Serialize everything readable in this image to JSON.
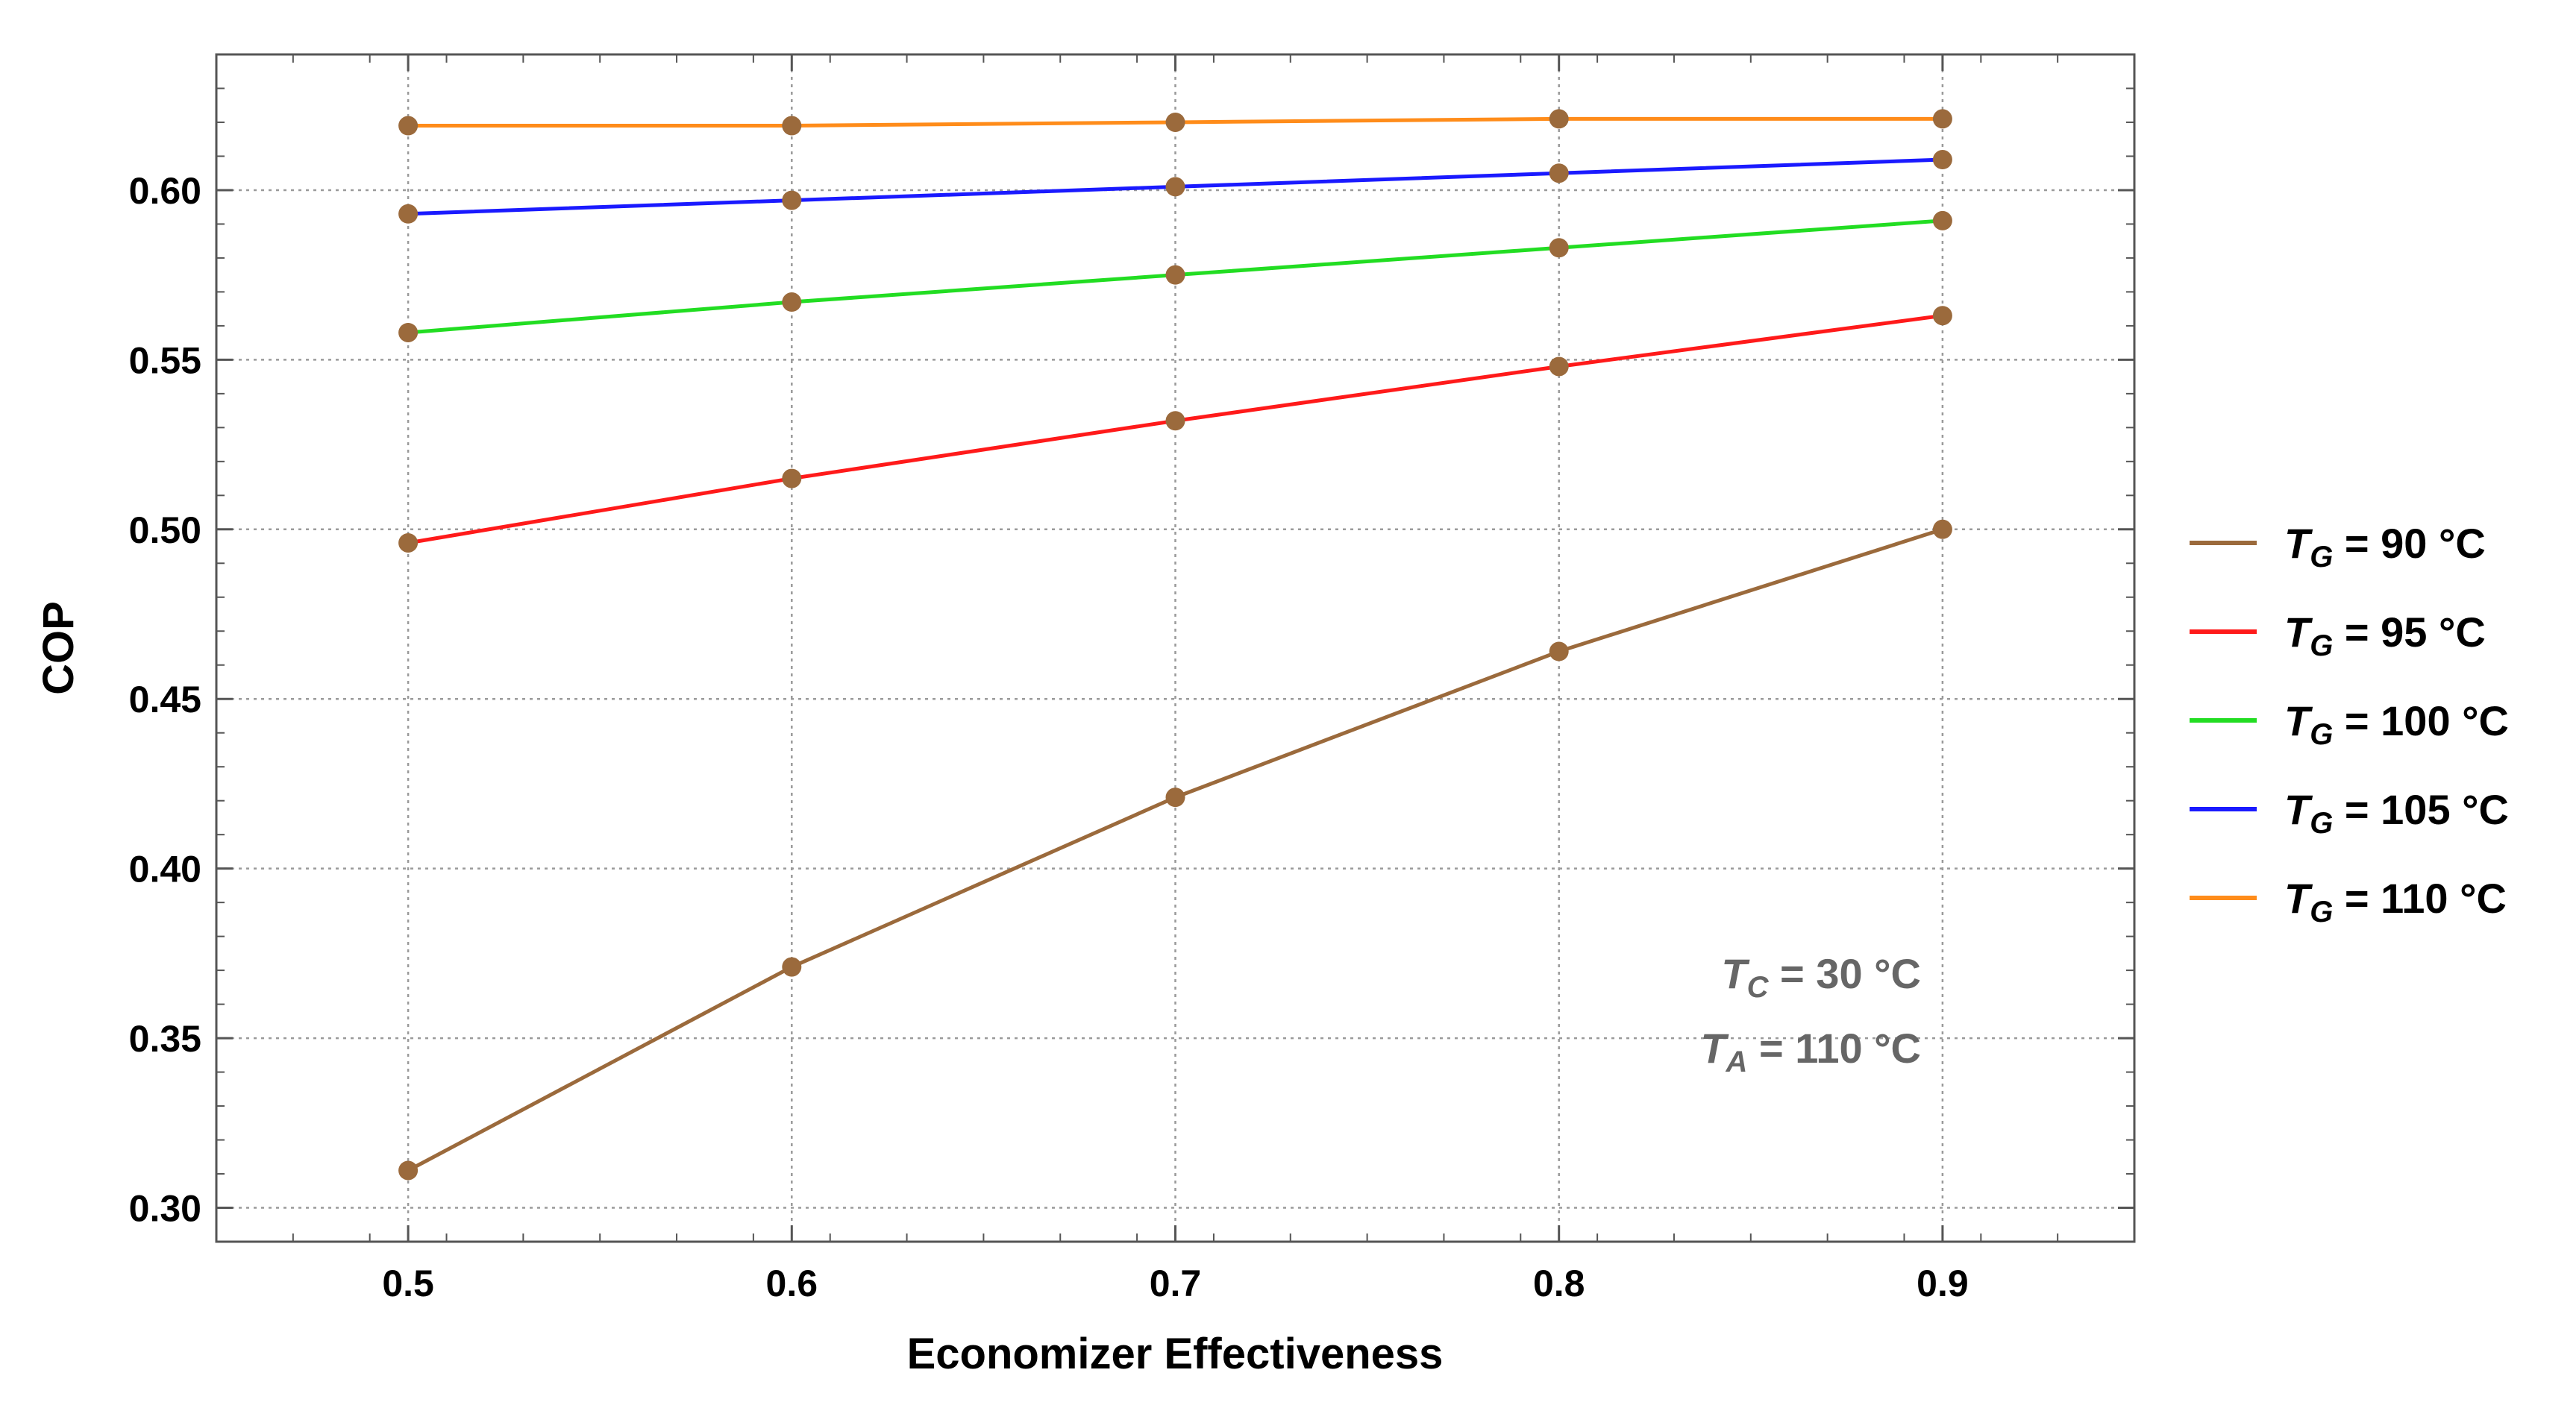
{
  "chart_data": {
    "type": "line",
    "title": "",
    "xlabel": "Economizer Effectiveness",
    "ylabel": "COP",
    "xlim": [
      0.45,
      0.95
    ],
    "ylim": [
      0.29,
      0.64
    ],
    "x": [
      0.5,
      0.6,
      0.7,
      0.8,
      0.9
    ],
    "xticks": [
      "0.5",
      "0.6",
      "0.7",
      "0.8",
      "0.9"
    ],
    "yticks": [
      "0.30",
      "0.35",
      "0.40",
      "0.45",
      "0.50",
      "0.55",
      "0.60"
    ],
    "grid": true,
    "legend_position": "right",
    "marker_color": "#9b6a3c",
    "series": [
      {
        "name": "T_G = 90 °C",
        "var": "T",
        "sub": "G",
        "rest": " = 90 °C",
        "color": "#9b6a3c",
        "values": [
          0.311,
          0.371,
          0.421,
          0.464,
          0.5
        ]
      },
      {
        "name": "T_G = 95 °C",
        "var": "T",
        "sub": "G",
        "rest": " = 95 °C",
        "color": "#ff1a1a",
        "values": [
          0.496,
          0.515,
          0.532,
          0.548,
          0.563
        ]
      },
      {
        "name": "T_G = 100 °C",
        "var": "T",
        "sub": "G",
        "rest": " = 100 °C",
        "color": "#22dd22",
        "values": [
          0.558,
          0.567,
          0.575,
          0.583,
          0.591
        ]
      },
      {
        "name": "T_G = 105 °C",
        "var": "T",
        "sub": "G",
        "rest": " = 105 °C",
        "color": "#1a1aff",
        "values": [
          0.593,
          0.597,
          0.601,
          0.605,
          0.609
        ]
      },
      {
        "name": "T_G = 110 °C",
        "var": "T",
        "sub": "G",
        "rest": " = 110 °C",
        "color": "#ff8c1a",
        "values": [
          0.619,
          0.619,
          0.62,
          0.621,
          0.621
        ]
      }
    ],
    "annotations": [
      {
        "var": "T",
        "sub": "C",
        "rest": " = 30 °C"
      },
      {
        "var": "T",
        "sub": "A",
        "rest": " = 110 °C"
      }
    ]
  }
}
